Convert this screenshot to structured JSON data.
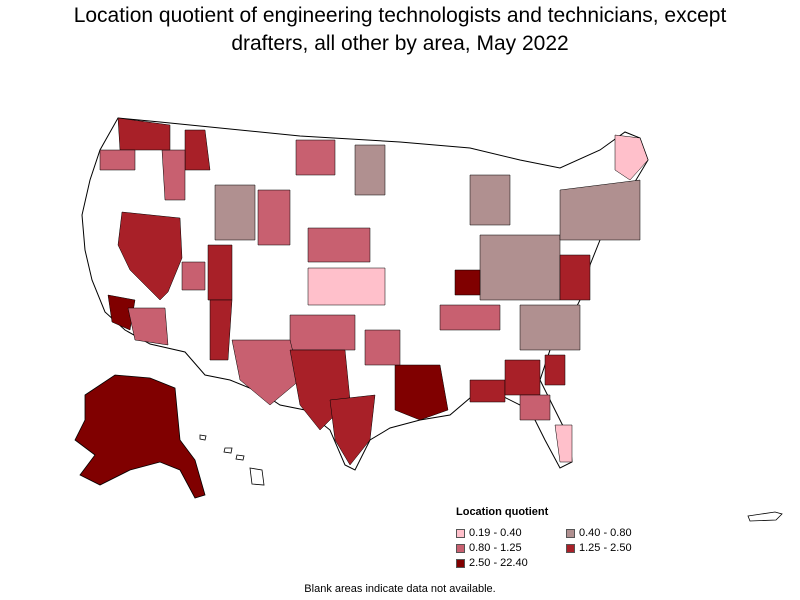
{
  "title_line1": "Location quotient of engineering technologists and technicians, except",
  "title_line2": "drafters, all other by area, May 2022",
  "legend": {
    "title": "Location quotient",
    "items": [
      {
        "label": "0.19 - 0.40",
        "color": "#ffc0cb"
      },
      {
        "label": "0.40 - 0.80",
        "color": "#b09090"
      },
      {
        "label": "0.80 - 1.25",
        "color": "#c86070"
      },
      {
        "label": "1.25 - 2.50",
        "color": "#a82028"
      },
      {
        "label": "2.50 - 22.40",
        "color": "#800000"
      }
    ]
  },
  "footnote": "Blank areas indicate data not available.",
  "colors": {
    "no_data": "#ffffff",
    "border": "#000000"
  }
}
